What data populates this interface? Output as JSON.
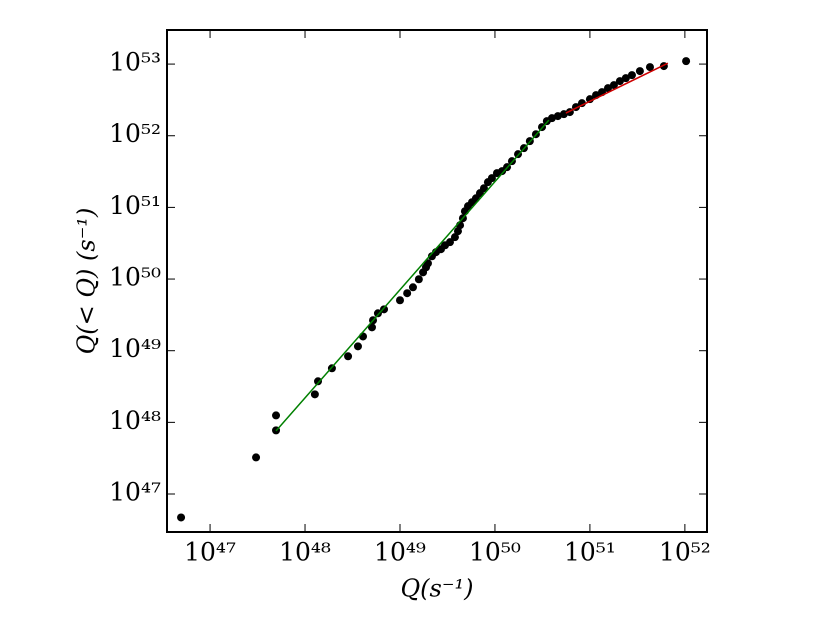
{
  "chart_data": {
    "type": "scatter",
    "xlabel": "Q(s⁻¹)",
    "ylabel": "Q(< Q)  (s⁻¹)",
    "xscale": "log",
    "yscale": "log",
    "color": "#000000",
    "x": [
      4.95e+46,
      3.05e+47,
      4.95e+47,
      4.95e+47,
      1.27e+48,
      1.37e+48,
      1.92e+48,
      2.84e+48,
      3.61e+48,
      4.08e+48,
      5.07e+48,
      5.2e+48,
      5.86e+48,
      6.79e+48,
      1e+49,
      1.19e+49,
      1.37e+49,
      1.58e+49,
      1.75e+49,
      1.88e+49,
      1.97e+49,
      2.17e+49,
      2.39e+49,
      2.7e+49,
      2.98e+49,
      3.36e+49,
      3.79e+49,
      4.08e+49,
      4.29e+49,
      4.6e+49,
      4.83e+49,
      5.2e+49,
      5.73e+49,
      6.31e+49,
      6.95e+49,
      7.66e+49,
      8.43e+49,
      9.29e+49,
      1.05e+50,
      1.19e+50,
      1.34e+50,
      1.51e+50,
      1.75e+50,
      2.02e+50,
      2.33e+50,
      2.7e+50,
      3.13e+50,
      3.52e+50,
      3.98e+50,
      4.6e+50,
      5.32e+50,
      6.15e+50,
      7.13e+50,
      8.24e+50,
      1e+51,
      1.16e+51,
      1.34e+51,
      1.55e+51,
      1.79e+51,
      2.07e+51,
      2.39e+51,
      2.77e+51,
      3.36e+51,
      4.29e+51,
      6.01e+51,
      1.03e+52
    ],
    "y": [
      4.71e+46,
      3.24e+47,
      1.25e+48,
      7.73e+47,
      2.46e+48,
      3.74e+48,
      5.68e+48,
      8.36e+48,
      1.15e+49,
      1.58e+49,
      2.12e+49,
      2.66e+49,
      3.33e+49,
      3.78e+49,
      5.06e+49,
      6.34e+49,
      7.67e+49,
      9.93e+49,
      1.24e+50,
      1.46e+50,
      1.66e+50,
      2.08e+50,
      2.37e+50,
      2.61e+50,
      2.96e+50,
      3.27e+50,
      3.84e+50,
      4.66e+50,
      5.64e+50,
      7.06e+50,
      8.85e+50,
      1.04e+51,
      1.18e+51,
      1.34e+51,
      1.58e+51,
      1.85e+51,
      2.25e+51,
      2.56e+51,
      3.01e+51,
      3.21e+51,
      3.64e+51,
      4.42e+51,
      5.53e+51,
      6.71e+51,
      8.41e+51,
      1.05e+52,
      1.32e+52,
      1.6e+52,
      1.76e+52,
      1.88e+52,
      2e+52,
      2.14e+52,
      2.51e+52,
      2.85e+52,
      3.24e+52,
      3.69e+52,
      4.06e+52,
      4.62e+52,
      5.09e+52,
      5.79e+52,
      6.37e+52,
      7.01e+52,
      7.98e+52,
      9.08e+52,
      9.38e+52,
      1.1e+53
    ],
    "lines": [
      {
        "color": "#008000",
        "x": [
          4.95e+47,
          3.7e+50
        ],
        "y": [
          7.6e+47,
          1.65e+52
        ]
      },
      {
        "color": "#cc0000",
        "x": [
          5.58e+50,
          6.62e+51
        ],
        "y": [
          2.07e+52,
          1.03e+53
        ]
      }
    ],
    "xlim": [
      3.52e+46,
      1.71e+52
    ],
    "ylim": [
      2.95e+46,
      2.99e+53
    ],
    "xticks": [
      {
        "value": 1e+47,
        "label": "10⁴⁷"
      },
      {
        "value": 1e+48,
        "label": "10⁴⁸"
      },
      {
        "value": 1e+49,
        "label": "10⁴⁹"
      },
      {
        "value": 1e+50,
        "label": "10⁵⁰"
      },
      {
        "value": 1e+51,
        "label": "10⁵¹"
      },
      {
        "value": 1e+52,
        "label": "10⁵²"
      }
    ],
    "yticks": [
      {
        "value": 1e+47,
        "label": "10⁴⁷"
      },
      {
        "value": 1e+48,
        "label": "10⁴⁸"
      },
      {
        "value": 1e+49,
        "label": "10⁴⁹"
      },
      {
        "value": 1e+50,
        "label": "10⁵⁰"
      },
      {
        "value": 1e+51,
        "label": "10⁵¹"
      },
      {
        "value": 1e+52,
        "label": "10⁵²"
      },
      {
        "value": 1e+53,
        "label": "10⁵³"
      }
    ]
  }
}
